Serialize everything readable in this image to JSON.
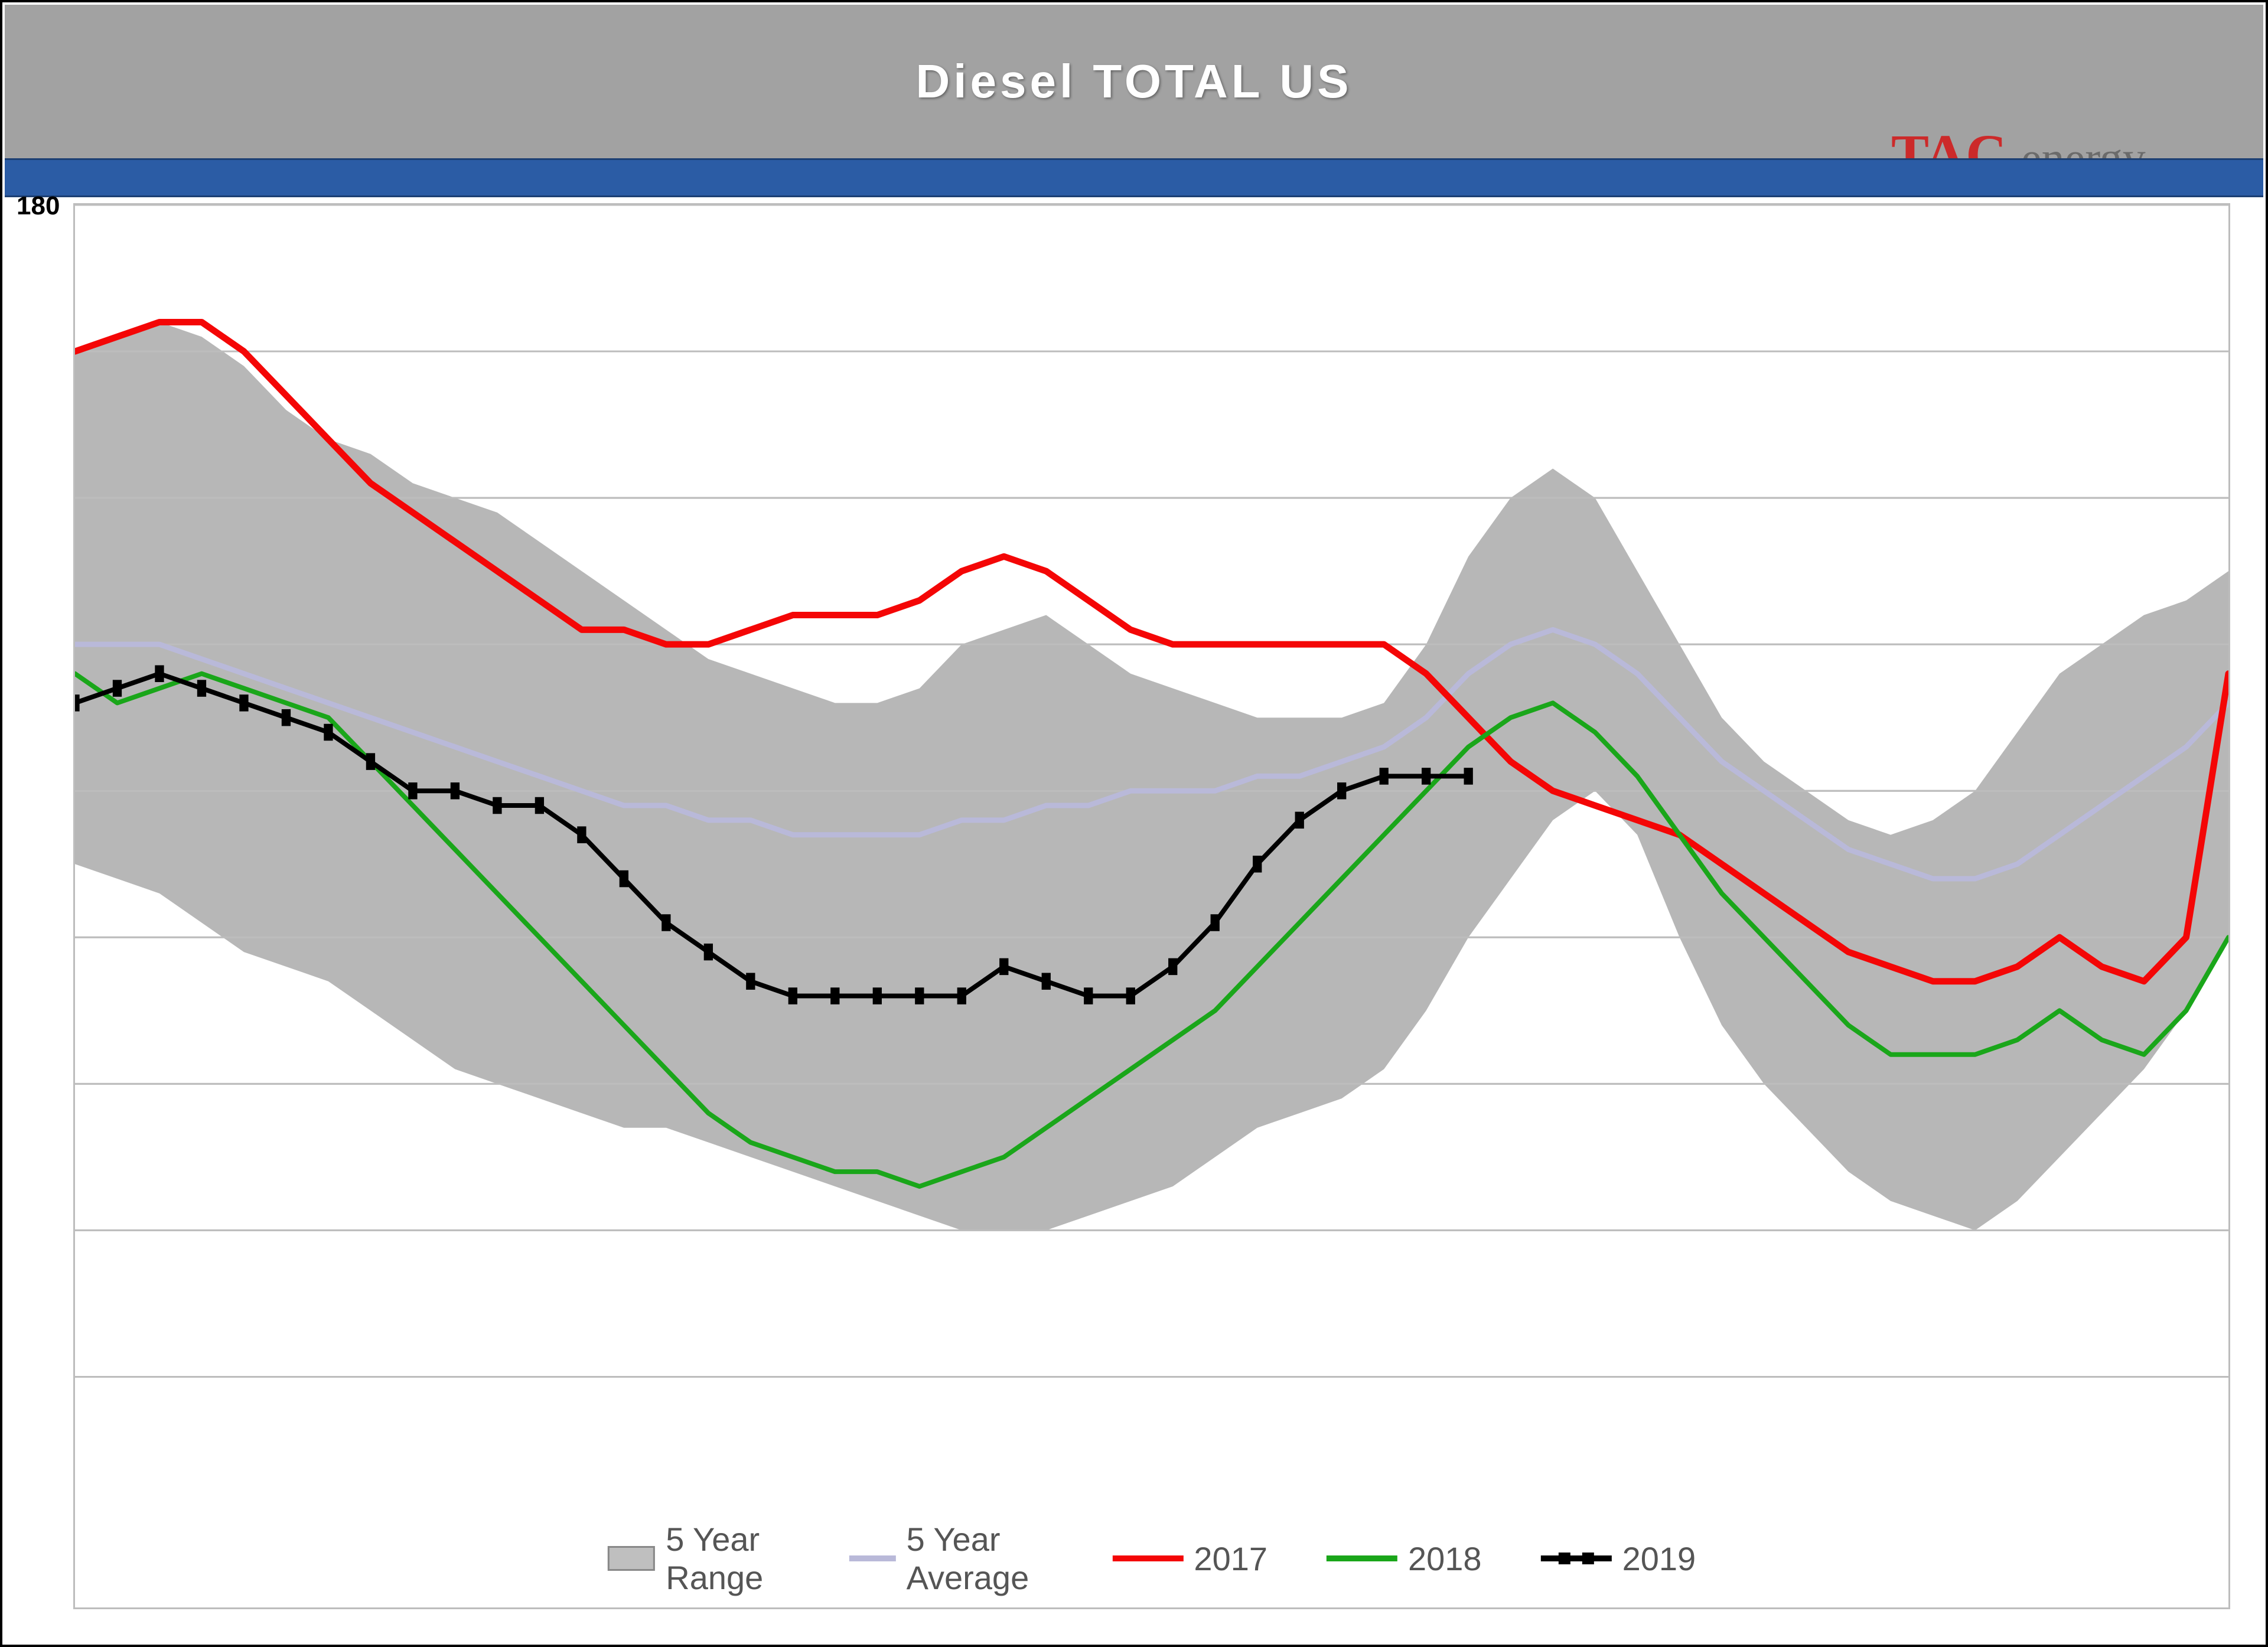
{
  "header": {
    "title": "Diesel  TOTAL US",
    "title_fontsize": 80,
    "title_color": "#ffffff",
    "background_color": "#a2a2a2",
    "bluebar_color": "#2b5ca5"
  },
  "brand": {
    "tac_color": "#cc2a2a",
    "energy_color": "#6b6b6b",
    "text_tac": "TAC",
    "text_energy": "energy"
  },
  "y_axis_stub": "180",
  "chart": {
    "type": "line-with-range-band",
    "x_count": 52,
    "ylim": [
      90,
      180
    ],
    "gridline_color": "#bdbdbd",
    "gridline_width": 3,
    "gridlines_y": [
      180,
      170,
      160,
      150,
      140,
      130,
      120,
      110,
      100
    ],
    "background_color": "#ffffff",
    "range_band": {
      "fill": "#b7b7b7",
      "fill_opacity": 1.0,
      "upper": [
        170,
        171,
        172,
        171,
        169,
        166,
        164,
        163,
        161,
        160,
        159,
        157,
        155,
        153,
        151,
        149,
        148,
        147,
        146,
        146,
        147,
        150,
        151,
        152,
        150,
        148,
        147,
        146,
        145,
        145,
        145,
        146,
        150,
        156,
        160,
        162,
        160,
        155,
        150,
        145,
        142,
        140,
        138,
        137,
        138,
        140,
        144,
        148,
        150,
        152,
        153,
        155
      ],
      "lower": [
        135,
        134,
        133,
        131,
        129,
        128,
        127,
        125,
        123,
        121,
        120,
        119,
        118,
        117,
        117,
        116,
        115,
        114,
        113,
        112,
        111,
        110,
        110,
        110,
        111,
        112,
        113,
        115,
        117,
        118,
        119,
        121,
        125,
        130,
        134,
        138,
        140,
        137,
        130,
        124,
        120,
        117,
        114,
        112,
        111,
        110,
        112,
        115,
        118,
        121,
        125,
        130
      ]
    },
    "series": [
      {
        "name": "5 Year Average",
        "color": "#b9b9d9",
        "width": 9,
        "marker": "none",
        "visible_points": 52,
        "values": [
          150,
          150,
          150,
          149,
          148,
          147,
          146,
          145,
          144,
          143,
          142,
          141,
          140,
          139,
          139,
          138,
          138,
          137,
          137,
          137,
          137,
          138,
          138,
          139,
          139,
          140,
          140,
          140,
          141,
          141,
          142,
          143,
          145,
          148,
          150,
          151,
          150,
          148,
          145,
          142,
          140,
          138,
          136,
          135,
          134,
          134,
          135,
          137,
          139,
          141,
          143,
          146
        ]
      },
      {
        "name": "2017",
        "color": "#f40606",
        "width": 11,
        "marker": "none",
        "visible_points": 52,
        "values": [
          170,
          171,
          172,
          172,
          170,
          167,
          164,
          161,
          159,
          157,
          155,
          153,
          151,
          151,
          150,
          150,
          151,
          152,
          152,
          152,
          153,
          155,
          156,
          155,
          153,
          151,
          150,
          150,
          150,
          150,
          150,
          150,
          148,
          145,
          142,
          140,
          139,
          138,
          137,
          135,
          133,
          131,
          129,
          128,
          127,
          127,
          128,
          130,
          128,
          127,
          130,
          148
        ]
      },
      {
        "name": "2018",
        "color": "#1aa61a",
        "width": 8,
        "marker": "none",
        "visible_points": 52,
        "values": [
          148,
          146,
          147,
          148,
          147,
          146,
          145,
          142,
          139,
          136,
          133,
          130,
          127,
          124,
          121,
          118,
          116,
          115,
          114,
          114,
          113,
          114,
          115,
          117,
          119,
          121,
          123,
          125,
          128,
          131,
          134,
          137,
          140,
          143,
          145,
          146,
          144,
          141,
          137,
          133,
          130,
          127,
          124,
          122,
          122,
          122,
          123,
          125,
          123,
          122,
          125,
          130
        ]
      },
      {
        "name": "2019",
        "color": "#000000",
        "width": 8,
        "marker": "square",
        "marker_size": 15,
        "visible_points": 34,
        "values": [
          146,
          147,
          148,
          147,
          146,
          145,
          144,
          142,
          140,
          140,
          139,
          139,
          137,
          134,
          131,
          129,
          127,
          126,
          126,
          126,
          126,
          126,
          128,
          127,
          126,
          126,
          128,
          131,
          135,
          138,
          140,
          141,
          141,
          141
        ]
      }
    ],
    "legend": {
      "fontsize": 56,
      "text_color": "#666666",
      "items": [
        {
          "label": "5 Year Range",
          "type": "area",
          "fill": "#bfbfbf",
          "stroke": "#888888"
        },
        {
          "label": "5 Year Average",
          "type": "line",
          "color": "#b9b9d9"
        },
        {
          "label": "2017",
          "type": "line",
          "color": "#f40606"
        },
        {
          "label": "2018",
          "type": "line",
          "color": "#1aa61a"
        },
        {
          "label": "2019",
          "type": "line-marker",
          "color": "#000000"
        }
      ]
    }
  }
}
